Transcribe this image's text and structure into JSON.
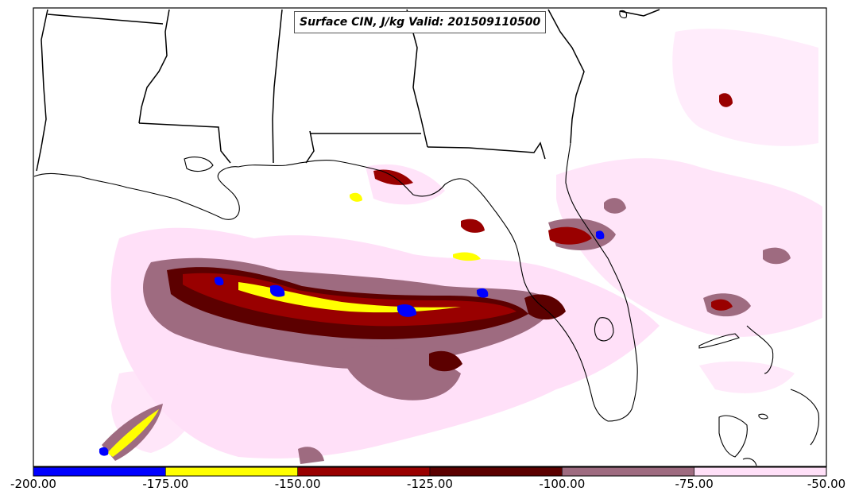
{
  "title": "Surface CIN, J/kg Valid: 201509110500",
  "colorbar": {
    "ticks": [
      "-200.00",
      "-175.00",
      "-150.00",
      "-125.00",
      "-100.00",
      "-75.00",
      "-50.00"
    ],
    "bins": [
      {
        "range": [
          -200,
          -175
        ],
        "color": "#0000ff"
      },
      {
        "range": [
          -175,
          -150
        ],
        "color": "#ffff00"
      },
      {
        "range": [
          -150,
          -125
        ],
        "color": "#990000"
      },
      {
        "range": [
          -125,
          -100
        ],
        "color": "#5c0000"
      },
      {
        "range": [
          -100,
          -75
        ],
        "color": "#9e6b80"
      },
      {
        "range": [
          -75,
          -50
        ],
        "color": "#ffe0f8"
      }
    ]
  }
}
